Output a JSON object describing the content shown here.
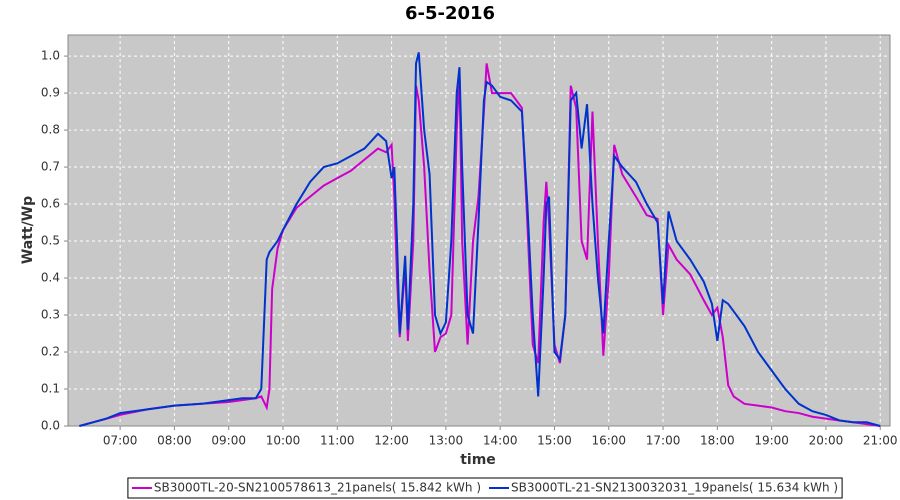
{
  "chart_data": {
    "type": "line",
    "title": "6-5-2016",
    "x_label": "time",
    "y_label": "Watt/Wp",
    "grid": true,
    "legend": "bottom",
    "xlim": [
      6.04,
      21.18
    ],
    "ylim": [
      0,
      1.057
    ],
    "xticks": [
      {
        "value": 7,
        "label": "07:00"
      },
      {
        "value": 8,
        "label": "08:00"
      },
      {
        "value": 9,
        "label": "09:00"
      },
      {
        "value": 10,
        "label": "10:00"
      },
      {
        "value": 11,
        "label": "11:00"
      },
      {
        "value": 12,
        "label": "12:00"
      },
      {
        "value": 13,
        "label": "13:00"
      },
      {
        "value": 14,
        "label": "14:00"
      },
      {
        "value": 15,
        "label": "15:00"
      },
      {
        "value": 16,
        "label": "16:00"
      },
      {
        "value": 17,
        "label": "17:00"
      },
      {
        "value": 18,
        "label": "18:00"
      },
      {
        "value": 19,
        "label": "19:00"
      },
      {
        "value": 20,
        "label": "20:00"
      },
      {
        "value": 21,
        "label": "21:00"
      }
    ],
    "yticks": [
      {
        "value": 0,
        "label": "0.0"
      },
      0.1,
      0.2,
      0.3,
      0.4,
      0.5,
      0.6,
      0.7,
      0.8,
      0.9,
      {
        "value": 1,
        "label": "1.0"
      }
    ],
    "x": [
      6.25,
      6.5,
      6.75,
      7,
      7.5,
      8,
      8.5,
      9,
      9.25,
      9.5,
      9.6,
      9.7,
      9.75,
      9.8,
      9.9,
      10,
      10.25,
      10.5,
      10.75,
      11,
      11.25,
      11.5,
      11.75,
      11.9,
      12,
      12.05,
      12.1,
      12.15,
      12.25,
      12.3,
      12.4,
      12.45,
      12.5,
      12.6,
      12.7,
      12.8,
      12.9,
      13,
      13.1,
      13.2,
      13.25,
      13.3,
      13.4,
      13.5,
      13.6,
      13.7,
      13.75,
      13.85,
      14,
      14.2,
      14.4,
      14.5,
      14.6,
      14.7,
      14.8,
      14.85,
      14.9,
      15,
      15.1,
      15.2,
      15.3,
      15.4,
      15.5,
      15.6,
      15.7,
      15.8,
      15.9,
      16,
      16.1,
      16.25,
      16.5,
      16.7,
      16.9,
      17,
      17.1,
      17.25,
      17.5,
      17.75,
      17.9,
      18,
      18.1,
      18.2,
      18.3,
      18.5,
      18.75,
      19,
      19.25,
      19.5,
      19.75,
      20,
      20.25,
      20.5,
      20.75,
      21
    ],
    "series": [
      {
        "name": "SB3000TL-20-SN2100578613_21panels( 15.842 kWh )",
        "color": "#cc00cc",
        "values": [
          0,
          0.01,
          0.02,
          0.03,
          0.045,
          0.055,
          0.06,
          0.065,
          0.07,
          0.075,
          0.08,
          0.05,
          0.1,
          0.37,
          0.48,
          0.53,
          0.59,
          0.62,
          0.65,
          0.67,
          0.69,
          0.72,
          0.75,
          0.74,
          0.76,
          0.62,
          0.4,
          0.24,
          0.43,
          0.23,
          0.5,
          0.92,
          0.88,
          0.7,
          0.42,
          0.2,
          0.24,
          0.25,
          0.3,
          0.8,
          0.96,
          0.5,
          0.22,
          0.5,
          0.62,
          0.85,
          0.98,
          0.9,
          0.9,
          0.9,
          0.86,
          0.55,
          0.22,
          0.17,
          0.55,
          0.66,
          0.55,
          0.22,
          0.17,
          0.3,
          0.92,
          0.86,
          0.5,
          0.45,
          0.85,
          0.5,
          0.19,
          0.4,
          0.76,
          0.68,
          0.62,
          0.57,
          0.56,
          0.3,
          0.49,
          0.45,
          0.41,
          0.34,
          0.3,
          0.32,
          0.24,
          0.11,
          0.08,
          0.06,
          0.055,
          0.05,
          0.04,
          0.035,
          0.025,
          0.02,
          0.015,
          0.01,
          0.005,
          0
        ]
      },
      {
        "name": "SB3000TL-21-SN2130032031_19panels( 15.634 kWh )",
        "color": "#0033cc",
        "values": [
          0,
          0.01,
          0.02,
          0.035,
          0.045,
          0.055,
          0.06,
          0.07,
          0.075,
          0.075,
          0.1,
          0.45,
          0.47,
          0.48,
          0.5,
          0.53,
          0.6,
          0.66,
          0.7,
          0.71,
          0.73,
          0.75,
          0.79,
          0.77,
          0.67,
          0.7,
          0.5,
          0.25,
          0.46,
          0.26,
          0.6,
          0.98,
          1.01,
          0.8,
          0.68,
          0.3,
          0.25,
          0.28,
          0.5,
          0.9,
          0.97,
          0.7,
          0.3,
          0.25,
          0.55,
          0.88,
          0.93,
          0.92,
          0.89,
          0.88,
          0.85,
          0.6,
          0.3,
          0.08,
          0.4,
          0.6,
          0.62,
          0.2,
          0.18,
          0.3,
          0.88,
          0.9,
          0.75,
          0.87,
          0.6,
          0.4,
          0.25,
          0.5,
          0.73,
          0.7,
          0.66,
          0.6,
          0.55,
          0.33,
          0.58,
          0.5,
          0.45,
          0.39,
          0.33,
          0.23,
          0.34,
          0.33,
          0.31,
          0.27,
          0.2,
          0.15,
          0.1,
          0.06,
          0.04,
          0.03,
          0.015,
          0.01,
          0.01,
          0
        ]
      }
    ]
  }
}
